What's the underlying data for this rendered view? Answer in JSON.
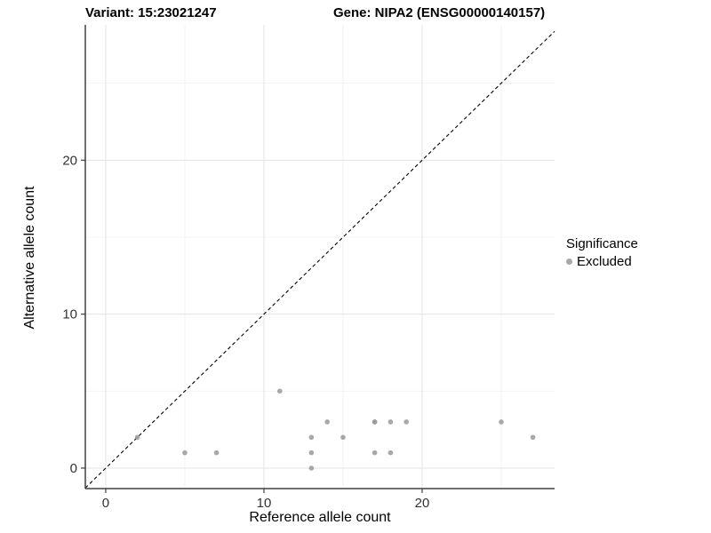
{
  "figure": {
    "title_left": "Variant: 15:23021247",
    "title_right": "Gene: NIPA2 (ENSG00000140157)"
  },
  "chart_data": {
    "type": "scatter",
    "title_left": "Variant: 15:23021247",
    "title_right": "Gene: NIPA2 (ENSG00000140157)",
    "xlabel": "Reference allele count",
    "ylabel": "Alternative allele count",
    "x_ticks": [
      0,
      10,
      20
    ],
    "y_ticks": [
      0,
      10,
      20
    ],
    "x_minor_ticks": [
      5,
      15,
      25
    ],
    "y_minor_ticks": [
      5,
      15,
      25
    ],
    "xlim": [
      -1.29,
      28.37
    ],
    "ylim": [
      -1.33,
      28.79
    ],
    "grid": true,
    "identity_line": {
      "equation": "y = x",
      "style": "dashed",
      "color": "#000000"
    },
    "series": [
      {
        "name": "Excluded",
        "color": "#999999",
        "opacity": 0.85,
        "points": [
          [
            2,
            2
          ],
          [
            5,
            1
          ],
          [
            7,
            1
          ],
          [
            11,
            5
          ],
          [
            13,
            0
          ],
          [
            13,
            1
          ],
          [
            13,
            2
          ],
          [
            14,
            3
          ],
          [
            15,
            2
          ],
          [
            17,
            1
          ],
          [
            17,
            3
          ],
          [
            17,
            3
          ],
          [
            18,
            1
          ],
          [
            18,
            3
          ],
          [
            19,
            3
          ],
          [
            25,
            3
          ],
          [
            27,
            2
          ]
        ]
      }
    ],
    "legend": {
      "position": "right",
      "title": "Significance",
      "items": [
        {
          "label": "Excluded",
          "color": "#a8a8a8"
        }
      ]
    },
    "style": {
      "point_radius": 2.8,
      "axis_line_color": "#404040",
      "tick_label_color": "#333333",
      "grid_major_color": "#e3e3e3",
      "grid_minor_color": "#f0f0f0"
    }
  }
}
